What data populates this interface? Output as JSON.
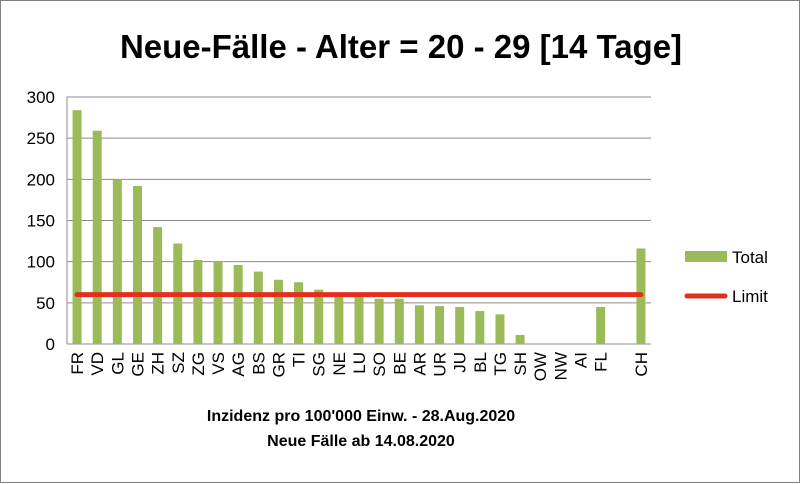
{
  "chart_data": {
    "type": "bar",
    "title": "Neue-Fälle - Alter = 20 - 29 [14 Tage]",
    "xlabel_lines": [
      "Inzidenz pro 100'000 Einw. - 28.Aug.2020",
      "Neue Fälle ab 14.08.2020"
    ],
    "ylabel": "",
    "ylim": [
      0,
      300
    ],
    "yticks": [
      0,
      50,
      100,
      150,
      200,
      250,
      300
    ],
    "grid": true,
    "legend_position": "right",
    "categories": [
      "FR",
      "VD",
      "GL",
      "GE",
      "ZH",
      "SZ",
      "ZG",
      "VS",
      "AG",
      "BS",
      "GR",
      "TI",
      "SG",
      "NE",
      "LU",
      "SO",
      "BE",
      "AR",
      "UR",
      "JU",
      "BL",
      "TG",
      "SH",
      "OW",
      "NW",
      "AI",
      "FL",
      "",
      "CH"
    ],
    "series": [
      {
        "name": "Total",
        "type": "bar",
        "color": "#9bbb59",
        "values": [
          284,
          259,
          200,
          192,
          142,
          122,
          102,
          100,
          96,
          88,
          78,
          75,
          66,
          61,
          60,
          55,
          55,
          47,
          46,
          45,
          40,
          36,
          11,
          0,
          0,
          0,
          45,
          null,
          116
        ]
      },
      {
        "name": "Limit",
        "type": "line",
        "color": "#e2301e",
        "value": 60
      }
    ]
  }
}
